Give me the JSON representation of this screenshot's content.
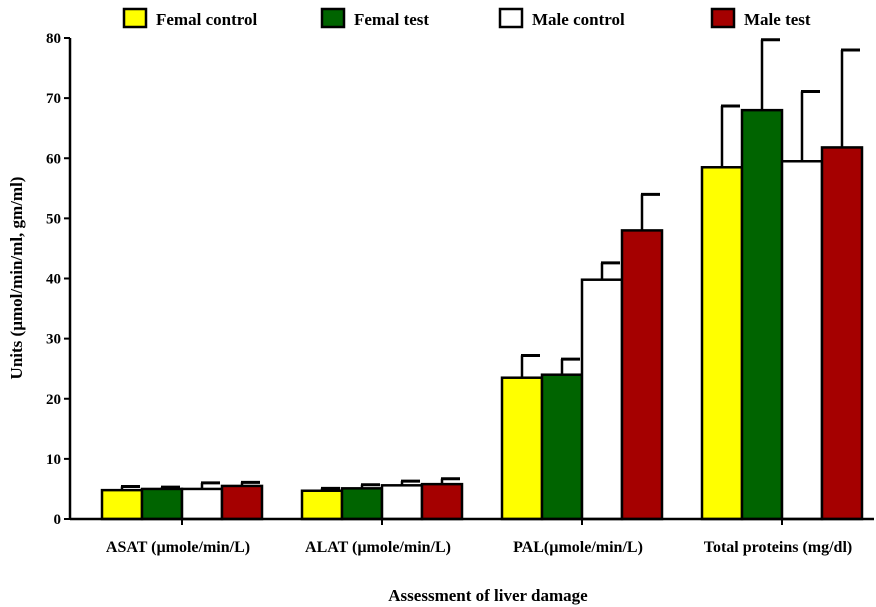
{
  "chart_data": {
    "type": "bar",
    "title": "",
    "xlabel": "Assessment of liver damage",
    "ylabel": "Units (µmol/min/ml, gm/ml)",
    "ylim": [
      0,
      80
    ],
    "yticks": [
      0,
      10,
      20,
      30,
      40,
      50,
      60,
      70,
      80
    ],
    "grid": false,
    "legend_position": "top",
    "error_bars": true,
    "categories": [
      "ASAT (µmole/min/L)",
      "ALAT (µmole/min/L)",
      "PAL(µmole/min/L)",
      "Total proteins (mg/dl)"
    ],
    "series": [
      {
        "name": "Femal control",
        "color": "#ffff00",
        "values": [
          4.8,
          4.7,
          23.5,
          58.5
        ],
        "errors": [
          0.6,
          0.4,
          3.7,
          10.2
        ]
      },
      {
        "name": "Femal test",
        "color": "#006400",
        "values": [
          5.0,
          5.1,
          24.0,
          68.0
        ],
        "errors": [
          0.3,
          0.6,
          2.6,
          11.7
        ]
      },
      {
        "name": "Male control",
        "color": "#ffffff",
        "values": [
          5.0,
          5.6,
          39.8,
          59.5
        ],
        "errors": [
          1.0,
          0.7,
          2.8,
          11.6
        ]
      },
      {
        "name": "Male test",
        "color": "#a50000",
        "values": [
          5.5,
          5.8,
          48.0,
          61.8
        ],
        "errors": [
          0.6,
          0.9,
          6.0,
          16.2
        ]
      }
    ]
  }
}
